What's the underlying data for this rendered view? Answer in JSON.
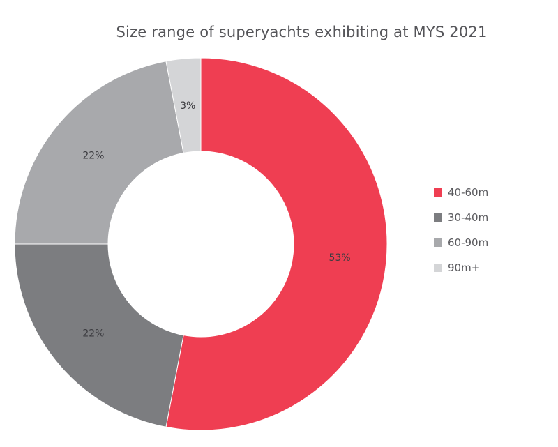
{
  "chart_data": {
    "type": "pie",
    "title": "Size range of superyachts exhibiting at MYS 2021",
    "labels": [
      "40-60m",
      "30-40m",
      "60-90m",
      "90m+"
    ],
    "values": [
      53,
      22,
      22,
      3
    ],
    "data_labels": [
      "53%",
      "22%",
      "22%",
      "3%"
    ],
    "colors": [
      "#ef3e52",
      "#7c7d80",
      "#a8a9ac",
      "#d4d5d7"
    ],
    "donut": true,
    "legend_position": "right"
  }
}
